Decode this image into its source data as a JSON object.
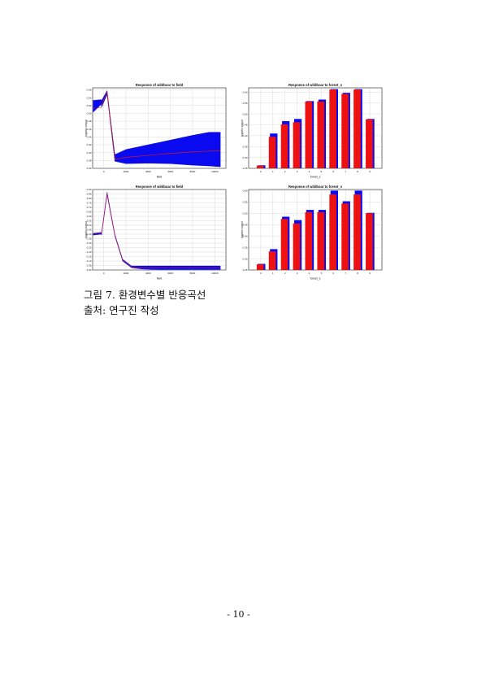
{
  "chart_data": [
    {
      "type": "line",
      "title": "Response of wildboar to field",
      "xlabel": "field",
      "ylabel": "logistic output",
      "xlim": [
        -1000,
        11000
      ],
      "ylim": [
        0.36,
        0.565
      ],
      "xticks": [
        0,
        2000,
        4000,
        6000,
        8000,
        10000
      ],
      "yticks": [
        0.36,
        0.38,
        0.4,
        0.42,
        0.44,
        0.46,
        0.48,
        0.5,
        0.52,
        0.54,
        0.56
      ],
      "grid": true,
      "box": {
        "x": [
          -950,
          -220
        ],
        "low": [
          0.503,
          0.523
        ],
        "mean": [
          0.513,
          0.515
        ],
        "high": [
          0.533,
          0.535
        ]
      },
      "band_x": [
        -200,
        300,
        1000,
        2000,
        4000,
        6000,
        8000,
        9500,
        10500
      ],
      "band_low": [
        0.515,
        0.548,
        0.378,
        0.372,
        0.373,
        0.372,
        0.368,
        0.366,
        0.364
      ],
      "band_high": [
        0.532,
        0.558,
        0.395,
        0.408,
        0.42,
        0.432,
        0.444,
        0.452,
        0.452
      ],
      "series": [
        {
          "color": "#d41c1c",
          "x": [
            -200,
            300,
            1000,
            2000,
            4000,
            6000,
            8000,
            10500
          ],
          "y": [
            0.52,
            0.555,
            0.383,
            0.388,
            0.393,
            0.398,
            0.402,
            0.405
          ]
        }
      ]
    },
    {
      "type": "bar",
      "title": "Response of wildboar to forest_s",
      "xlabel": "forest_s",
      "ylabel": "logistic output",
      "ylim": [
        0.25,
        0.62
      ],
      "yticks": [
        0.25,
        0.3,
        0.35,
        0.4,
        0.45,
        0.5,
        0.55,
        0.6
      ],
      "categories": [
        "0",
        "1",
        "2",
        "3",
        "4",
        "5",
        "6",
        "7",
        "8",
        "9"
      ],
      "values": [
        0.262,
        0.395,
        0.452,
        0.462,
        0.557,
        0.557,
        0.612,
        0.592,
        0.612,
        0.475
      ],
      "upper": [
        0.264,
        0.41,
        0.467,
        0.477,
        0.559,
        0.566,
        0.614,
        0.597,
        0.614,
        0.477
      ],
      "grid": true
    },
    {
      "type": "line",
      "title": "Response of wildboar to field",
      "xlabel": "field",
      "ylabel": "logistic output",
      "xlim": [
        -1000,
        11000
      ],
      "ylim": [
        0.0,
        0.9
      ],
      "xticks": [
        0,
        2000,
        4000,
        6000,
        8000,
        10000
      ],
      "yticks": [
        0.0,
        0.05,
        0.1,
        0.15,
        0.2,
        0.25,
        0.3,
        0.35,
        0.4,
        0.45,
        0.5,
        0.55,
        0.6,
        0.65,
        0.7,
        0.75,
        0.8,
        0.85,
        0.9
      ],
      "grid": true,
      "box": {
        "x": [
          -950,
          -220
        ],
        "low": [
          0.39,
          0.4
        ],
        "mean": [
          0.4,
          0.405
        ],
        "high": [
          0.41,
          0.42
        ]
      },
      "band_x": [
        -200,
        300,
        1000,
        1700,
        2500,
        3500,
        5000,
        8000,
        10500
      ],
      "band_low": [
        0.39,
        0.84,
        0.38,
        0.1,
        0.025,
        0.01,
        0.005,
        0.005,
        0.005
      ],
      "band_high": [
        0.41,
        0.87,
        0.4,
        0.12,
        0.045,
        0.045,
        0.045,
        0.045,
        0.045
      ],
      "series": [
        {
          "color": "#c0186a",
          "x": [
            -200,
            300,
            1000,
            1700,
            2500,
            3500,
            5000,
            8000,
            10500
          ],
          "y": [
            0.4,
            0.855,
            0.39,
            0.11,
            0.035,
            0.025,
            0.022,
            0.022,
            0.022
          ]
        }
      ]
    },
    {
      "type": "bar",
      "title": "Response of wildboar to forest_s",
      "xlabel": "forest_s",
      "ylabel": "logistic output",
      "ylim": [
        0.25,
        0.605
      ],
      "yticks": [
        0.25,
        0.3,
        0.35,
        0.4,
        0.45,
        0.5,
        0.55,
        0.6
      ],
      "categories": [
        "0",
        "1",
        "2",
        "3",
        "4",
        "5",
        "6",
        "7",
        "8",
        "9"
      ],
      "values": [
        0.275,
        0.332,
        0.475,
        0.455,
        0.505,
        0.505,
        0.583,
        0.543,
        0.583,
        0.5
      ],
      "upper": [
        0.277,
        0.342,
        0.485,
        0.47,
        0.515,
        0.515,
        0.6,
        0.553,
        0.6,
        0.502
      ],
      "grid": true
    }
  ],
  "caption": {
    "line1": "그림 7. 환경변수별 반응곡선",
    "line2": "출처: 연구진 작성"
  },
  "page_number": "- 10 -"
}
